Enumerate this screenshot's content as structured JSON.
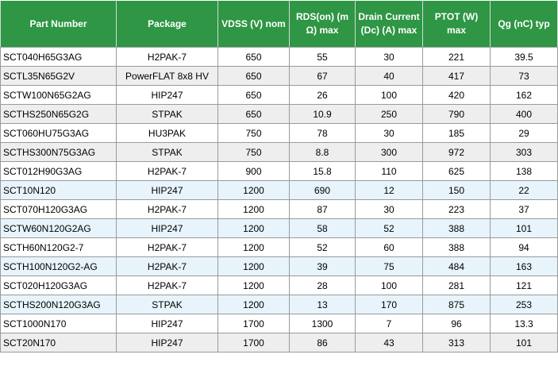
{
  "headers": [
    "Part Number",
    "Package",
    "VDSS (V) nom",
    "RDS(on) (m Ω) max",
    "Drain Current (Dc) (A) max",
    "PTOT (W) max",
    "Qg (nC) typ"
  ],
  "colors": {
    "header_bg": "#2e9644",
    "row_gray": "#eeeeee",
    "row_blue": "#e8f4fb",
    "row_white": "#ffffff"
  },
  "rows": [
    [
      "SCT040H65G3AG",
      "H2PAK-7",
      "650",
      "55",
      "30",
      "221",
      "39.5"
    ],
    [
      "SCTL35N65G2V",
      "PowerFLAT 8x8 HV",
      "650",
      "67",
      "40",
      "417",
      "73"
    ],
    [
      "SCTW100N65G2AG",
      "HIP247",
      "650",
      "26",
      "100",
      "420",
      "162"
    ],
    [
      "SCTHS250N65G2G",
      "STPAK",
      "650",
      "10.9",
      "250",
      "790",
      "400"
    ],
    [
      "SCT060HU75G3AG",
      "HU3PAK",
      "750",
      "78",
      "30",
      "185",
      "29"
    ],
    [
      "SCTHS300N75G3AG",
      "STPAK",
      "750",
      "8.8",
      "300",
      "972",
      "303"
    ],
    [
      "SCT012H90G3AG",
      "H2PAK-7",
      "900",
      "15.8",
      "110",
      "625",
      "138"
    ],
    [
      "SCT10N120",
      "HIP247",
      "1200",
      "690",
      "12",
      "150",
      "22"
    ],
    [
      "SCT070H120G3AG",
      "H2PAK-7",
      "1200",
      "87",
      "30",
      "223",
      "37"
    ],
    [
      "SCTW60N120G2AG",
      "HIP247",
      "1200",
      "58",
      "52",
      "388",
      "101"
    ],
    [
      "SCTH60N120G2-7",
      "H2PAK-7",
      "1200",
      "52",
      "60",
      "388",
      "94"
    ],
    [
      "SCTH100N120G2-AG",
      "H2PAK-7",
      "1200",
      "39",
      "75",
      "484",
      "163"
    ],
    [
      "SCT020H120G3AG",
      "H2PAK-7",
      "1200",
      "28",
      "100",
      "281",
      "121"
    ],
    [
      "SCTHS200N120G3AG",
      "STPAK",
      "1200",
      "13",
      "170",
      "875",
      "253"
    ],
    [
      "SCT1000N170",
      "HIP247",
      "1700",
      "1300",
      "7",
      "96",
      "13.3"
    ],
    [
      "SCT20N170",
      "HIP247",
      "1700",
      "86",
      "43",
      "313",
      "101"
    ]
  ],
  "row_shading": [
    "white",
    "gray",
    "white",
    "gray",
    "white",
    "gray",
    "white",
    "blue",
    "white",
    "blue",
    "white",
    "blue",
    "white",
    "blue",
    "white",
    "gray"
  ]
}
